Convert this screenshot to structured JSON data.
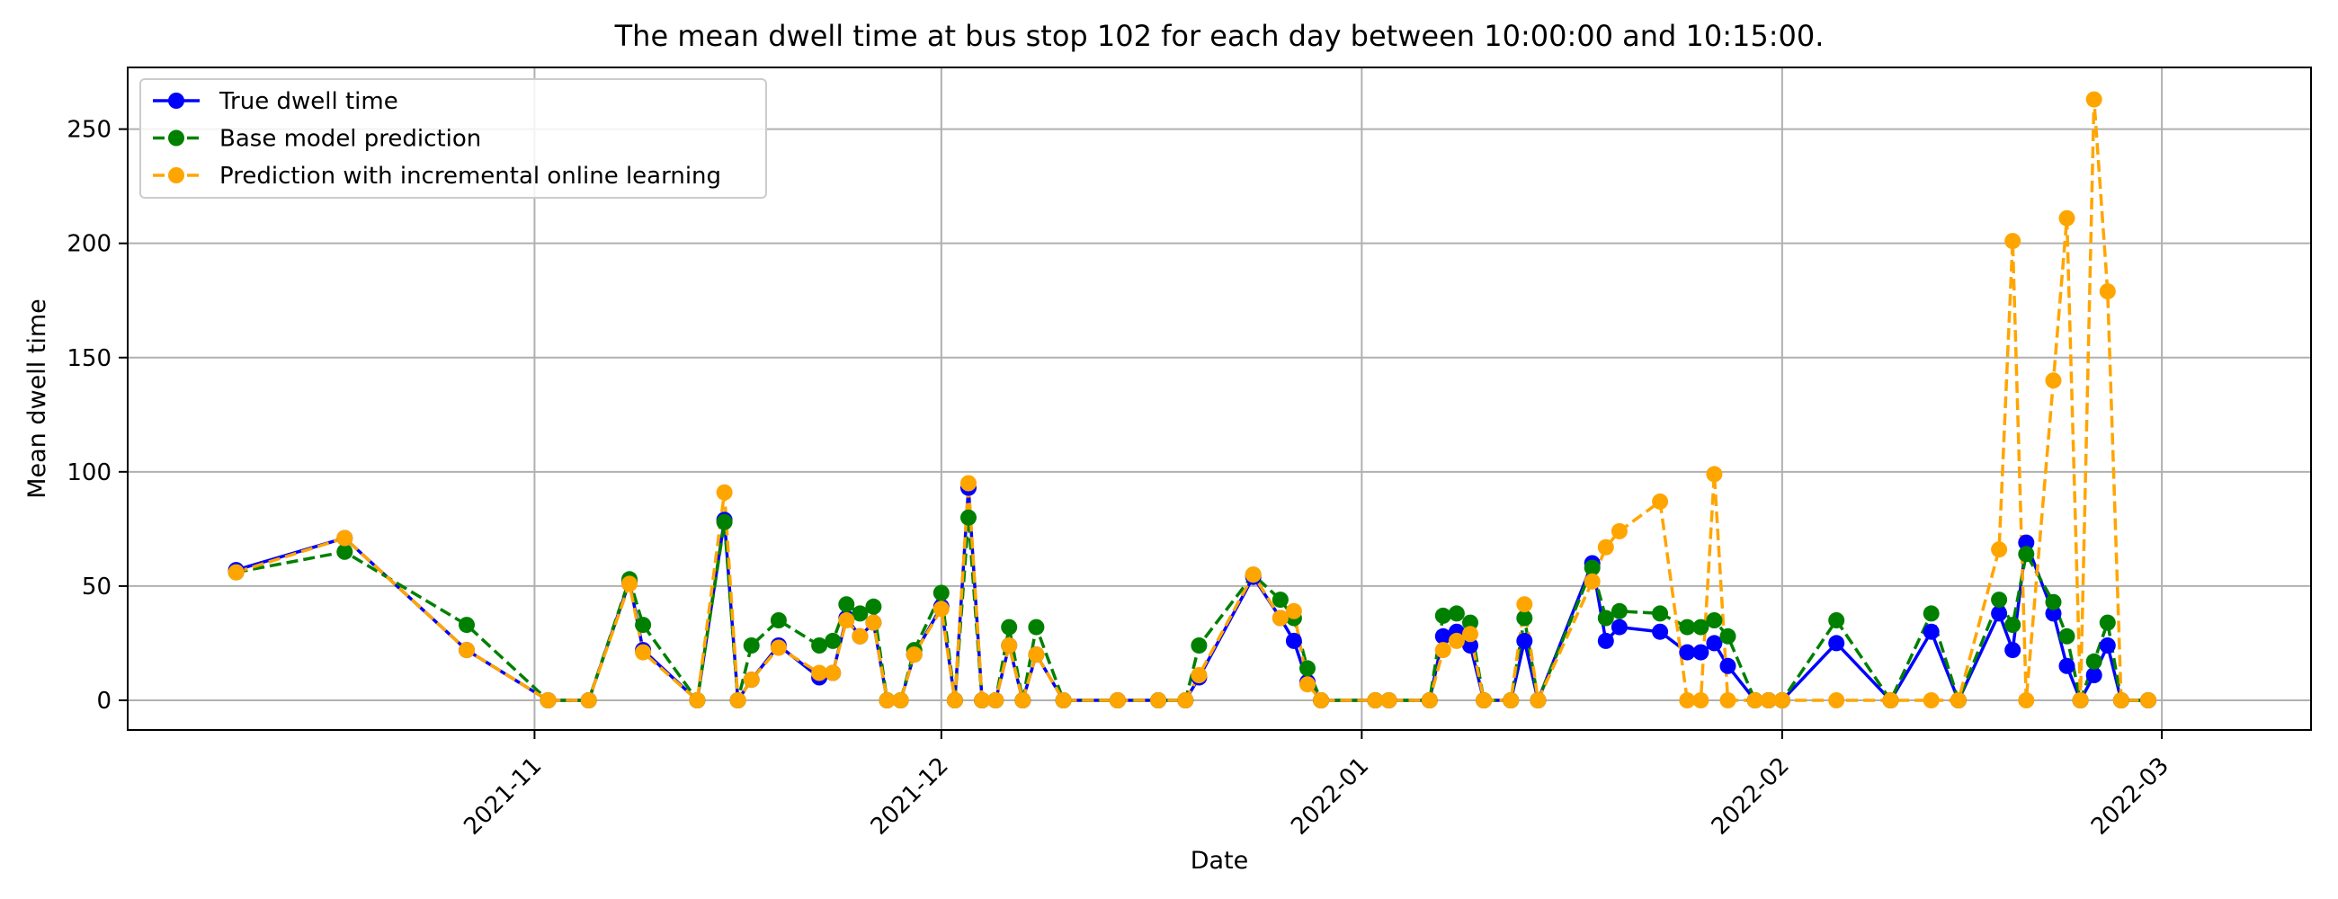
{
  "chart_data": {
    "type": "line",
    "title": "The mean dwell time at bus stop 102 for each day between 10:00:00 and 10:15:00.",
    "xlabel": "Date",
    "ylabel": "Mean dwell time",
    "xlim": [
      "2021-10-02",
      "2022-03-12"
    ],
    "ylim": [
      -13,
      277
    ],
    "yticks": [
      0,
      50,
      100,
      150,
      200,
      250
    ],
    "xticks": [
      {
        "date": "2021-11-01",
        "label": "2021-11"
      },
      {
        "date": "2021-12-01",
        "label": "2021-12"
      },
      {
        "date": "2022-01-01",
        "label": "2022-01"
      },
      {
        "date": "2022-02-01",
        "label": "2022-02"
      },
      {
        "date": "2022-03-01",
        "label": "2022-03"
      }
    ],
    "grid": true,
    "legend_position": "top-left",
    "series": [
      {
        "name": "True dwell time",
        "color": "#0000ff",
        "dashed": false,
        "points": [
          [
            "2021-10-10",
            57
          ],
          [
            "2021-10-18",
            71
          ],
          [
            "2021-10-27",
            22
          ],
          [
            "2021-11-02",
            0
          ],
          [
            "2021-11-05",
            0
          ],
          [
            "2021-11-08",
            52
          ],
          [
            "2021-11-09",
            22
          ],
          [
            "2021-11-13",
            0
          ],
          [
            "2021-11-15",
            79
          ],
          [
            "2021-11-16",
            0
          ],
          [
            "2021-11-17",
            9
          ],
          [
            "2021-11-19",
            24
          ],
          [
            "2021-11-22",
            10
          ],
          [
            "2021-11-23",
            12
          ],
          [
            "2021-11-24",
            36
          ],
          [
            "2021-11-25",
            28
          ],
          [
            "2021-11-26",
            34
          ],
          [
            "2021-11-27",
            0
          ],
          [
            "2021-11-28",
            0
          ],
          [
            "2021-11-29",
            20
          ],
          [
            "2021-12-01",
            41
          ],
          [
            "2021-12-02",
            0
          ],
          [
            "2021-12-03",
            93
          ],
          [
            "2021-12-04",
            0
          ],
          [
            "2021-12-05",
            0
          ],
          [
            "2021-12-06",
            24
          ],
          [
            "2021-12-07",
            0
          ],
          [
            "2021-12-08",
            20
          ],
          [
            "2021-12-10",
            0
          ],
          [
            "2021-12-14",
            0
          ],
          [
            "2021-12-17",
            0
          ],
          [
            "2021-12-19",
            0
          ],
          [
            "2021-12-20",
            10
          ],
          [
            "2021-12-24",
            54
          ],
          [
            "2021-12-26",
            36
          ],
          [
            "2021-12-27",
            26
          ],
          [
            "2021-12-28",
            8
          ],
          [
            "2021-12-29",
            0
          ],
          [
            "2022-01-02",
            0
          ],
          [
            "2022-01-03",
            0
          ],
          [
            "2022-01-06",
            0
          ],
          [
            "2022-01-07",
            28
          ],
          [
            "2022-01-08",
            30
          ],
          [
            "2022-01-09",
            24
          ],
          [
            "2022-01-10",
            0
          ],
          [
            "2022-01-12",
            0
          ],
          [
            "2022-01-13",
            26
          ],
          [
            "2022-01-14",
            0
          ],
          [
            "2022-01-18",
            60
          ],
          [
            "2022-01-19",
            26
          ],
          [
            "2022-01-20",
            32
          ],
          [
            "2022-01-23",
            30
          ],
          [
            "2022-01-25",
            21
          ],
          [
            "2022-01-26",
            21
          ],
          [
            "2022-01-27",
            25
          ],
          [
            "2022-01-28",
            15
          ],
          [
            "2022-01-30",
            0
          ],
          [
            "2022-01-31",
            0
          ],
          [
            "2022-02-01",
            0
          ],
          [
            "2022-02-05",
            25
          ],
          [
            "2022-02-09",
            0
          ],
          [
            "2022-02-12",
            30
          ],
          [
            "2022-02-14",
            0
          ],
          [
            "2022-02-17",
            38
          ],
          [
            "2022-02-18",
            22
          ],
          [
            "2022-02-19",
            69
          ],
          [
            "2022-02-21",
            38
          ],
          [
            "2022-02-22",
            15
          ],
          [
            "2022-02-23",
            0
          ],
          [
            "2022-02-24",
            11
          ],
          [
            "2022-02-25",
            24
          ],
          [
            "2022-02-26",
            0
          ],
          [
            "2022-02-28",
            0
          ]
        ]
      },
      {
        "name": "Base model prediction",
        "color": "#008000",
        "dashed": true,
        "points": [
          [
            "2021-10-10",
            56
          ],
          [
            "2021-10-18",
            65
          ],
          [
            "2021-10-27",
            33
          ],
          [
            "2021-11-02",
            0
          ],
          [
            "2021-11-05",
            0
          ],
          [
            "2021-11-08",
            53
          ],
          [
            "2021-11-09",
            33
          ],
          [
            "2021-11-13",
            0
          ],
          [
            "2021-11-15",
            78
          ],
          [
            "2021-11-16",
            0
          ],
          [
            "2021-11-17",
            24
          ],
          [
            "2021-11-19",
            35
          ],
          [
            "2021-11-22",
            24
          ],
          [
            "2021-11-23",
            26
          ],
          [
            "2021-11-24",
            42
          ],
          [
            "2021-11-25",
            38
          ],
          [
            "2021-11-26",
            41
          ],
          [
            "2021-11-27",
            0
          ],
          [
            "2021-11-28",
            0
          ],
          [
            "2021-11-29",
            22
          ],
          [
            "2021-12-01",
            47
          ],
          [
            "2021-12-02",
            0
          ],
          [
            "2021-12-03",
            80
          ],
          [
            "2021-12-04",
            0
          ],
          [
            "2021-12-05",
            0
          ],
          [
            "2021-12-06",
            32
          ],
          [
            "2021-12-07",
            0
          ],
          [
            "2021-12-08",
            32
          ],
          [
            "2021-12-10",
            0
          ],
          [
            "2021-12-14",
            0
          ],
          [
            "2021-12-17",
            0
          ],
          [
            "2021-12-19",
            0
          ],
          [
            "2021-12-20",
            24
          ],
          [
            "2021-12-24",
            55
          ],
          [
            "2021-12-26",
            44
          ],
          [
            "2021-12-27",
            36
          ],
          [
            "2021-12-28",
            14
          ],
          [
            "2021-12-29",
            0
          ],
          [
            "2022-01-02",
            0
          ],
          [
            "2022-01-03",
            0
          ],
          [
            "2022-01-06",
            0
          ],
          [
            "2022-01-07",
            37
          ],
          [
            "2022-01-08",
            38
          ],
          [
            "2022-01-09",
            34
          ],
          [
            "2022-01-10",
            0
          ],
          [
            "2022-01-12",
            0
          ],
          [
            "2022-01-13",
            36
          ],
          [
            "2022-01-14",
            0
          ],
          [
            "2022-01-18",
            58
          ],
          [
            "2022-01-19",
            36
          ],
          [
            "2022-01-20",
            39
          ],
          [
            "2022-01-23",
            38
          ],
          [
            "2022-01-25",
            32
          ],
          [
            "2022-01-26",
            32
          ],
          [
            "2022-01-27",
            35
          ],
          [
            "2022-01-28",
            28
          ],
          [
            "2022-01-30",
            0
          ],
          [
            "2022-01-31",
            0
          ],
          [
            "2022-02-01",
            0
          ],
          [
            "2022-02-05",
            35
          ],
          [
            "2022-02-09",
            0
          ],
          [
            "2022-02-12",
            38
          ],
          [
            "2022-02-14",
            0
          ],
          [
            "2022-02-17",
            44
          ],
          [
            "2022-02-18",
            33
          ],
          [
            "2022-02-19",
            64
          ],
          [
            "2022-02-21",
            43
          ],
          [
            "2022-02-22",
            28
          ],
          [
            "2022-02-23",
            0
          ],
          [
            "2022-02-24",
            17
          ],
          [
            "2022-02-25",
            34
          ],
          [
            "2022-02-26",
            0
          ],
          [
            "2022-02-28",
            0
          ]
        ]
      },
      {
        "name": "Prediction with incremental online learning",
        "color": "#ffa500",
        "dashed": true,
        "points": [
          [
            "2021-10-10",
            56
          ],
          [
            "2021-10-18",
            71
          ],
          [
            "2021-10-27",
            22
          ],
          [
            "2021-11-02",
            0
          ],
          [
            "2021-11-05",
            0
          ],
          [
            "2021-11-08",
            51
          ],
          [
            "2021-11-09",
            21
          ],
          [
            "2021-11-13",
            0
          ],
          [
            "2021-11-15",
            91
          ],
          [
            "2021-11-16",
            0
          ],
          [
            "2021-11-17",
            9
          ],
          [
            "2021-11-19",
            23
          ],
          [
            "2021-11-22",
            12
          ],
          [
            "2021-11-23",
            12
          ],
          [
            "2021-11-24",
            35
          ],
          [
            "2021-11-25",
            28
          ],
          [
            "2021-11-26",
            34
          ],
          [
            "2021-11-27",
            0
          ],
          [
            "2021-11-28",
            0
          ],
          [
            "2021-11-29",
            20
          ],
          [
            "2021-12-01",
            40
          ],
          [
            "2021-12-02",
            0
          ],
          [
            "2021-12-03",
            95
          ],
          [
            "2021-12-04",
            0
          ],
          [
            "2021-12-05",
            0
          ],
          [
            "2021-12-06",
            24
          ],
          [
            "2021-12-07",
            0
          ],
          [
            "2021-12-08",
            20
          ],
          [
            "2021-12-10",
            0
          ],
          [
            "2021-12-14",
            0
          ],
          [
            "2021-12-17",
            0
          ],
          [
            "2021-12-19",
            0
          ],
          [
            "2021-12-20",
            11
          ],
          [
            "2021-12-24",
            55
          ],
          [
            "2021-12-26",
            36
          ],
          [
            "2021-12-27",
            39
          ],
          [
            "2021-12-28",
            7
          ],
          [
            "2021-12-29",
            0
          ],
          [
            "2022-01-02",
            0
          ],
          [
            "2022-01-03",
            0
          ],
          [
            "2022-01-06",
            0
          ],
          [
            "2022-01-07",
            22
          ],
          [
            "2022-01-08",
            26
          ],
          [
            "2022-01-09",
            29
          ],
          [
            "2022-01-10",
            0
          ],
          [
            "2022-01-12",
            0
          ],
          [
            "2022-01-13",
            42
          ],
          [
            "2022-01-14",
            0
          ],
          [
            "2022-01-18",
            52
          ],
          [
            "2022-01-19",
            67
          ],
          [
            "2022-01-20",
            74
          ],
          [
            "2022-01-23",
            87
          ],
          [
            "2022-01-25",
            0
          ],
          [
            "2022-01-26",
            0
          ],
          [
            "2022-01-27",
            99
          ],
          [
            "2022-01-28",
            0
          ],
          [
            "2022-01-30",
            0
          ],
          [
            "2022-01-31",
            0
          ],
          [
            "2022-02-01",
            0
          ],
          [
            "2022-02-05",
            0
          ],
          [
            "2022-02-09",
            0
          ],
          [
            "2022-02-12",
            0
          ],
          [
            "2022-02-14",
            0
          ],
          [
            "2022-02-17",
            66
          ],
          [
            "2022-02-18",
            201
          ],
          [
            "2022-02-19",
            0
          ],
          [
            "2022-02-21",
            140
          ],
          [
            "2022-02-22",
            211
          ],
          [
            "2022-02-23",
            0
          ],
          [
            "2022-02-24",
            263
          ],
          [
            "2022-02-25",
            179
          ],
          [
            "2022-02-26",
            0
          ],
          [
            "2022-02-28",
            0
          ]
        ]
      }
    ]
  }
}
